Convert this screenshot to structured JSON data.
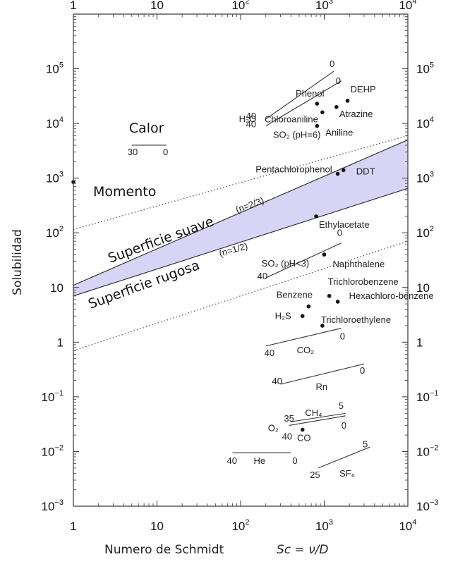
{
  "chart_data": {
    "type": "scatter",
    "xscale": "log",
    "yscale": "log",
    "xlim": [
      1,
      10000
    ],
    "ylim": [
      0.001,
      1000000
    ],
    "xlabel": "Numero de Schmidt",
    "xlabel_formula": "Sc = ν/D",
    "ylabel": "Solubilidad",
    "x_ticks": [
      {
        "m": "1",
        "e": ""
      },
      {
        "m": "10",
        "e": ""
      },
      {
        "m": "10",
        "e": "2"
      },
      {
        "m": "10",
        "e": "3"
      },
      {
        "m": "10",
        "e": "4"
      }
    ],
    "y_ticks": [
      {
        "m": "10",
        "e": "−3"
      },
      {
        "m": "10",
        "e": "−2"
      },
      {
        "m": "10",
        "e": "−1"
      },
      {
        "m": "1",
        "e": ""
      },
      {
        "m": "10",
        "e": ""
      },
      {
        "m": "10",
        "e": "2"
      },
      {
        "m": "10",
        "e": "3"
      },
      {
        "m": "10",
        "e": "4"
      },
      {
        "m": "10",
        "e": "5"
      }
    ],
    "bands": {
      "smooth_label": "Superficie suave",
      "smooth_exp": "(n=2/3)",
      "rough_label": "Superficie rugosa",
      "rough_exp": "(n=1/2)",
      "upper": [
        [
          1,
          11
        ],
        [
          10000,
          5000
        ]
      ],
      "lower": [
        [
          1,
          7
        ],
        [
          10000,
          650
        ]
      ],
      "dotted_upper": [
        [
          1,
          115
        ],
        [
          10000,
          6000
        ]
      ],
      "dotted_lower": [
        [
          1,
          0.7
        ],
        [
          10000,
          70
        ]
      ],
      "fill": "#d8d4f6"
    },
    "points": [
      {
        "name": "Momento",
        "x": 1,
        "y": 850
      },
      {
        "name": "Phenol",
        "x": 820,
        "y": 23000
      },
      {
        "name": "DEHP",
        "x": 1900,
        "y": 26000
      },
      {
        "name": "Chloroaniline",
        "x": 950,
        "y": 16000
      },
      {
        "name": "Atrazine",
        "x": 1400,
        "y": 20000
      },
      {
        "name": "Aniline",
        "x": 820,
        "y": 9000
      },
      {
        "name": "Pentachlorophenol",
        "x": 1450,
        "y": 1200
      },
      {
        "name": "DDT",
        "x": 1700,
        "y": 1400
      },
      {
        "name": "Ethylacetate",
        "x": 800,
        "y": 200
      },
      {
        "name": "Naphthalene",
        "x": 1000,
        "y": 40
      },
      {
        "name": "Trichlorobenzene",
        "x": 1150,
        "y": 7
      },
      {
        "name": "Hexachloro-benzene",
        "x": 1450,
        "y": 5.5
      },
      {
        "name": "Benzene",
        "x": 650,
        "y": 4.5
      },
      {
        "name": "H₂S",
        "x": 550,
        "y": 3
      },
      {
        "name": "Trichloroethylene",
        "x": 950,
        "y": 2
      },
      {
        "name": "CO",
        "x": 550,
        "y": 0.025
      }
    ],
    "ranges": [
      {
        "name": "H₂O",
        "x1": 200,
        "y1": 12000,
        "x2": 1300,
        "y2": 90000,
        "t1": "40",
        "t2": "0"
      },
      {
        "name": "SO₂ (pH=6)",
        "x1": 200,
        "y1": 9000,
        "x2": 1600,
        "y2": 60000,
        "t1": "40",
        "t2": "0"
      },
      {
        "name": "Calor",
        "x1": 5,
        "y1": 4000,
        "x2": 13,
        "y2": 4000,
        "t1": "30",
        "t2": "0"
      },
      {
        "name": "SO₂ (pH<3)",
        "x1": 200,
        "y1": 15,
        "x2": 1600,
        "y2": 65,
        "t1": "40",
        "t2": "0"
      },
      {
        "name": "CO₂",
        "x1": 200,
        "y1": 0.85,
        "x2": 1600,
        "y2": 1.8,
        "t1": "40",
        "t2": "0"
      },
      {
        "name": "Rn",
        "x1": 300,
        "y1": 0.17,
        "x2": 3000,
        "y2": 0.4,
        "t1": "40",
        "t2": "0"
      },
      {
        "name": "CH₄",
        "x1": 400,
        "y1": 0.035,
        "x2": 1800,
        "y2": 0.05,
        "t1": "35",
        "t2": "5"
      },
      {
        "name": "O₂",
        "x1": 380,
        "y1": 0.03,
        "x2": 1800,
        "y2": 0.045,
        "t1": "40",
        "t2": "0"
      },
      {
        "name": "He",
        "x1": 80,
        "y1": 0.0095,
        "x2": 400,
        "y2": 0.0095,
        "t1": "40",
        "t2": "0"
      },
      {
        "name": "SF₆",
        "x1": 850,
        "y1": 0.005,
        "x2": 3500,
        "y2": 0.012,
        "t1": "25",
        "t2": "5"
      }
    ]
  }
}
